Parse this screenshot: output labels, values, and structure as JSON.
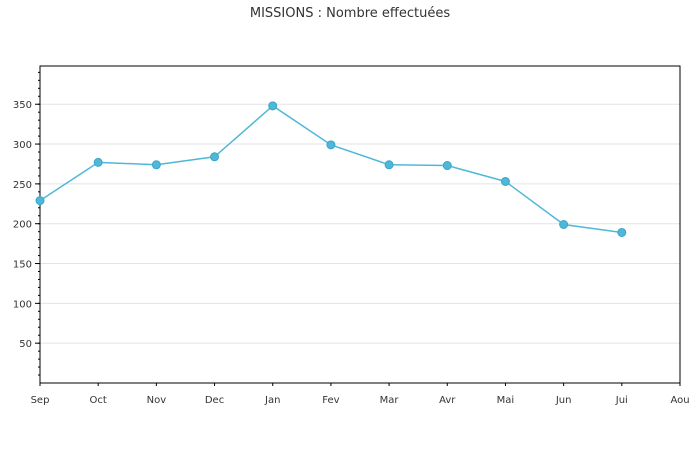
{
  "chart_data": {
    "type": "line",
    "title": "MISSIONS : Nombre effectuées",
    "xlabel": "",
    "ylabel": "",
    "categories": [
      "Sep",
      "Oct",
      "Nov",
      "Dec",
      "Jan",
      "Fev",
      "Mar",
      "Avr",
      "Mai",
      "Jun",
      "Jui",
      "Aou"
    ],
    "series": [
      {
        "values": [
          229,
          277,
          274,
          284,
          348,
          299,
          274,
          273,
          253,
          199,
          189,
          null
        ]
      }
    ],
    "ylim": [
      0,
      398
    ],
    "yticks": [
      50,
      100,
      150,
      200,
      250,
      300,
      350
    ],
    "grid": true,
    "legend": "none",
    "colors": {
      "line": "#4fb8d8",
      "marker": "#4fb8d8",
      "grid": "#e3e3e3",
      "axis": "#000000",
      "text": "#333333"
    }
  }
}
